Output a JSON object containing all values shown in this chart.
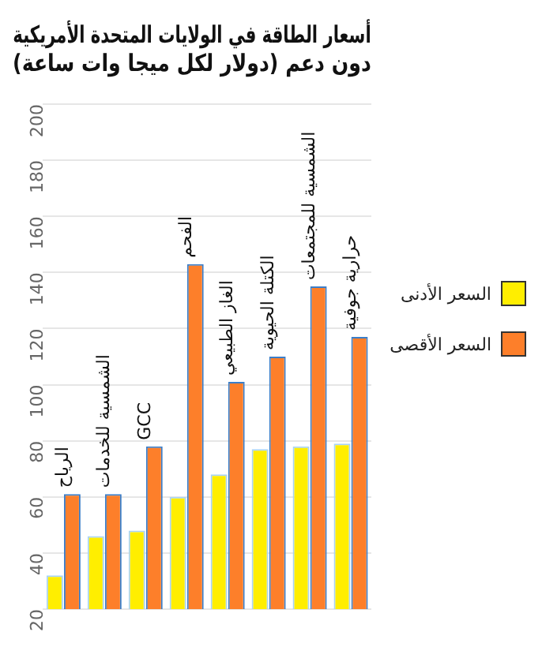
{
  "chart_data": {
    "type": "bar",
    "title": "أسعار الطاقة في الولايات المتحدة الأمريكية",
    "subtitle": "دون دعم (دولار لكل ميجا وات ساعة)",
    "categories": [
      "الرياح",
      "الشمسية للخدمات",
      "GCC",
      "الفحم",
      "الغاز الطبيعي",
      "الكتلة الحيوية",
      "الشمسية للمجتمعات",
      "حرارية جوفية"
    ],
    "series": [
      {
        "name": "السعر الأدنى",
        "color": "#ffee00",
        "values": [
          32,
          46,
          48,
          60,
          68,
          77,
          78,
          79
        ]
      },
      {
        "name": "السعر الأقصى",
        "color": "#fd7f2a",
        "values": [
          61,
          61,
          78,
          143,
          101,
          110,
          135,
          117
        ]
      }
    ],
    "ylim": [
      20,
      200
    ],
    "yticks": [
      20,
      40,
      60,
      80,
      100,
      120,
      140,
      160,
      180,
      200
    ],
    "grid": "y",
    "legend": "right"
  }
}
